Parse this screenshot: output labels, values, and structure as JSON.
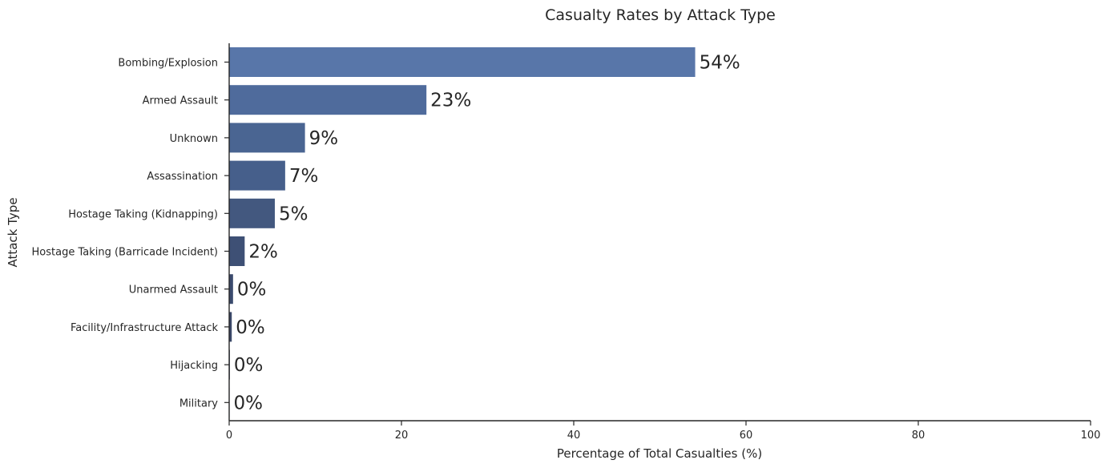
{
  "chart_data": {
    "type": "bar",
    "orientation": "horizontal",
    "title": "Casualty Rates by Attack Type",
    "xlabel": "Percentage of Total Casualties (%)",
    "ylabel": "Attack Type",
    "xlim": [
      0,
      100
    ],
    "xticks": [
      0,
      20,
      40,
      60,
      80,
      100
    ],
    "grid": false,
    "categories": [
      "Bombing/Explosion",
      "Armed Assault",
      "Unknown",
      "Assassination",
      "Hostage Taking (Kidnapping)",
      "Hostage Taking (Barricade Incident)",
      "Unarmed Assault",
      "Facility/Infrastructure Attack",
      "Hijacking",
      "Military"
    ],
    "values": [
      54.1,
      22.9,
      8.8,
      6.5,
      5.3,
      1.8,
      0.45,
      0.3,
      0.08,
      0.05
    ],
    "data_labels": [
      "54%",
      "23%",
      "9%",
      "7%",
      "5%",
      "2%",
      "0%",
      "0%",
      "0%",
      "0%"
    ],
    "colors": [
      "#5876a9",
      "#4f6b9c",
      "#4a6592",
      "#465f8b",
      "#43587f",
      "#3e5075",
      "#3b4b6e",
      "#3a4768",
      "#384462",
      "#36415e"
    ],
    "axis_color": "#262626"
  }
}
